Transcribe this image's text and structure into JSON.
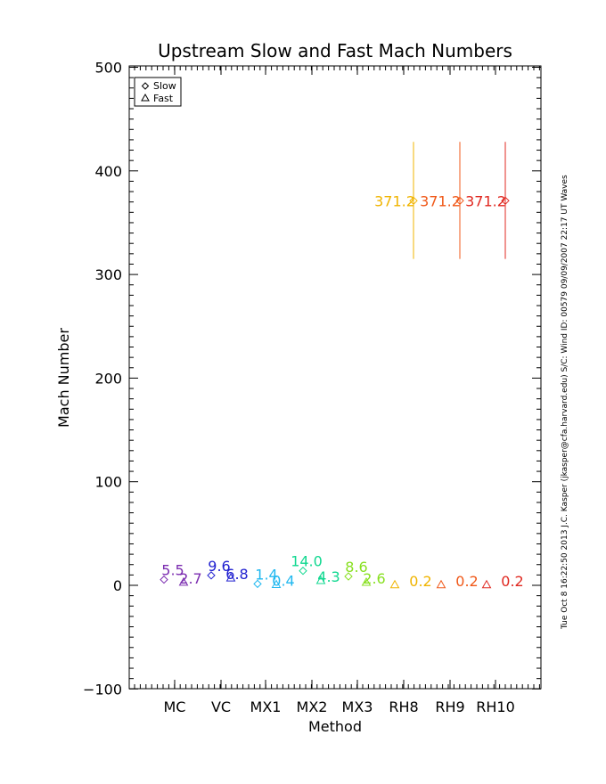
{
  "chart_data": {
    "type": "scatter",
    "title": "Upstream Slow and Fast Mach Numbers",
    "xlabel": "Method",
    "ylabel": "Mach Number",
    "ylim": [
      -100,
      500
    ],
    "yticks": [
      "−100",
      "0",
      "100",
      "200",
      "300",
      "400",
      "500"
    ],
    "ytick_values": [
      -100,
      0,
      100,
      200,
      300,
      400,
      500
    ],
    "categories": [
      "MC",
      "VC",
      "MX1",
      "MX2",
      "MX3",
      "RH8",
      "RH9",
      "RH10"
    ],
    "colors": [
      "#7b2cb0",
      "#2020d0",
      "#20b8f0",
      "#10d890",
      "#88e020",
      "#f0b400",
      "#f05818",
      "#e02820"
    ],
    "series": [
      {
        "name": "Slow",
        "marker": "diamond",
        "values": [
          5.5,
          9.6,
          1.4,
          14.0,
          8.6,
          371.2,
          371.2,
          371.2
        ],
        "labels": [
          "5.5",
          "9.6",
          "1.4",
          "14.0",
          "8.6",
          "371.2",
          "371.2",
          "371.2"
        ],
        "error_low": [
          null,
          null,
          null,
          null,
          null,
          315,
          315,
          315
        ],
        "error_high": [
          null,
          null,
          null,
          null,
          null,
          428,
          428,
          428
        ]
      },
      {
        "name": "Fast",
        "marker": "triangle",
        "values": [
          2.7,
          6.8,
          0.4,
          4.3,
          2.6,
          0.2,
          0.2,
          0.2
        ],
        "labels": [
          "2.7",
          "6.8",
          "0.4",
          "4.3",
          "2.6",
          "0.2",
          "0.2",
          "0.2"
        ]
      }
    ],
    "legend": {
      "position": "top-left",
      "entries": [
        "Slow",
        "Fast"
      ]
    },
    "side_note": "Tue Oct  8 16:22:50 2013  J.C. Kasper (jkasper@cfa.harvard.edu)  S/C: Wind ID: 00579 09/09/2007  22:17 UT Waves"
  }
}
